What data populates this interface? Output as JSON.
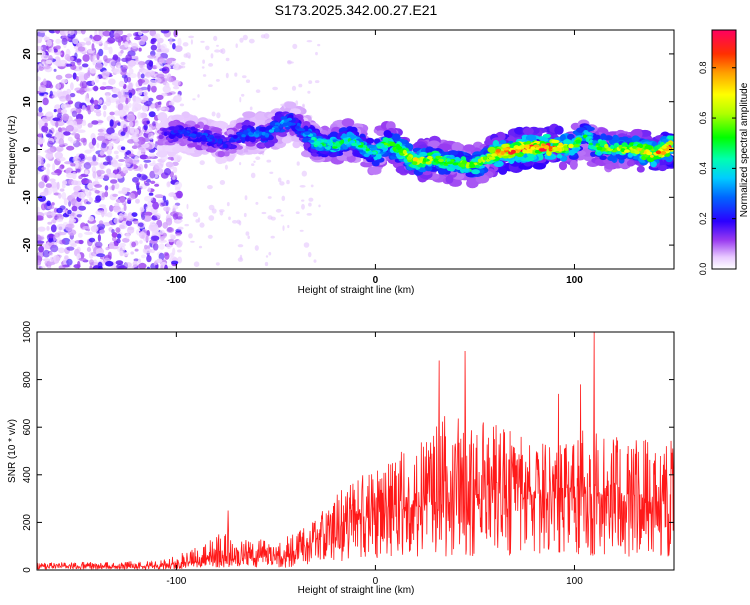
{
  "chart_data": [
    {
      "type": "heatmap",
      "title": "S173.2025.342.00.27.E21",
      "xlabel": "Height of straight line (km)",
      "ylabel": "Frequency (Hz)",
      "xlim": [
        -170,
        150
      ],
      "ylim": [
        -25,
        25
      ],
      "x_ticks": [
        -100,
        0,
        100
      ],
      "x_tick_labels": [
        "-100",
        "0",
        "100"
      ],
      "y_ticks": [
        -20,
        -10,
        0,
        10,
        20
      ],
      "y_tick_labels": [
        "-20",
        "-10",
        "0",
        "10",
        "20"
      ],
      "colorbar": {
        "label": "Normalized spectral amplitude",
        "range": [
          0,
          0.95
        ],
        "ticks": [
          0,
          0.2,
          0.4,
          0.6,
          0.8
        ],
        "tick_labels": [
          "0.0",
          "0.2",
          "0.4",
          "0.6",
          "0.8"
        ]
      },
      "ridge": {
        "x": [
          -105,
          -95,
          -85,
          -75,
          -65,
          -55,
          -48,
          -42,
          -36,
          -30,
          -20,
          -12,
          -5,
          0,
          5,
          10,
          20,
          30,
          40,
          50,
          55,
          60,
          70,
          80,
          90,
          100,
          105,
          110,
          120,
          130,
          140,
          148
        ],
        "freq": [
          3,
          3.5,
          2.5,
          1,
          3.5,
          3,
          5,
          6,
          3.5,
          1.5,
          1,
          2,
          0,
          -1,
          1.5,
          0.5,
          -2.5,
          -2,
          -3,
          -3.5,
          -2,
          -1,
          0,
          0.3,
          0.5,
          0.5,
          3.5,
          0.5,
          0,
          0,
          -1,
          0.5
        ],
        "amp": [
          0.2,
          0.25,
          0.25,
          0.2,
          0.3,
          0.3,
          0.35,
          0.3,
          0.3,
          0.45,
          0.5,
          0.45,
          0.5,
          0.45,
          0.55,
          0.6,
          0.7,
          0.6,
          0.55,
          0.6,
          0.6,
          0.8,
          0.85,
          0.9,
          0.85,
          0.6,
          0.5,
          0.55,
          0.6,
          0.65,
          0.75,
          0.9
        ]
      }
    },
    {
      "type": "line",
      "xlabel": "Height of straight line (km)",
      "ylabel": "SNR (10 * v/v)",
      "xlim": [
        -170,
        150
      ],
      "ylim": [
        0,
        1000
      ],
      "x_ticks": [
        -100,
        0,
        100
      ],
      "x_tick_labels": [
        "-100",
        "0",
        "100"
      ],
      "y_ticks": [
        0,
        200,
        400,
        600,
        800,
        1000
      ],
      "y_tick_labels": [
        "0",
        "200",
        "400",
        "600",
        "800",
        "1000"
      ],
      "color": "#ff0000",
      "envelope": {
        "x": [
          -170,
          -150,
          -130,
          -110,
          -100,
          -90,
          -80,
          -75,
          -70,
          -60,
          -50,
          -45,
          -40,
          -30,
          -25,
          -20,
          -10,
          0,
          10,
          20,
          30,
          40,
          45,
          50,
          60,
          70,
          80,
          90,
          100,
          105,
          110,
          120,
          130,
          140,
          150
        ],
        "low": [
          15,
          15,
          15,
          15,
          20,
          30,
          40,
          50,
          40,
          50,
          60,
          50,
          80,
          120,
          150,
          180,
          200,
          230,
          250,
          260,
          270,
          280,
          280,
          290,
          300,
          300,
          300,
          300,
          300,
          300,
          300,
          290,
          280,
          280,
          270
        ],
        "high": [
          30,
          35,
          35,
          40,
          60,
          100,
          140,
          180,
          120,
          140,
          100,
          140,
          160,
          220,
          280,
          320,
          380,
          430,
          480,
          550,
          620,
          700,
          720,
          620,
          620,
          600,
          560,
          520,
          540,
          600,
          640,
          560,
          560,
          540,
          560
        ],
        "peaks": [
          [
            -74,
            250
          ],
          [
            32,
            880
          ],
          [
            45,
            920
          ],
          [
            92,
            740
          ],
          [
            103,
            780
          ],
          [
            110,
            1000
          ]
        ]
      }
    }
  ]
}
